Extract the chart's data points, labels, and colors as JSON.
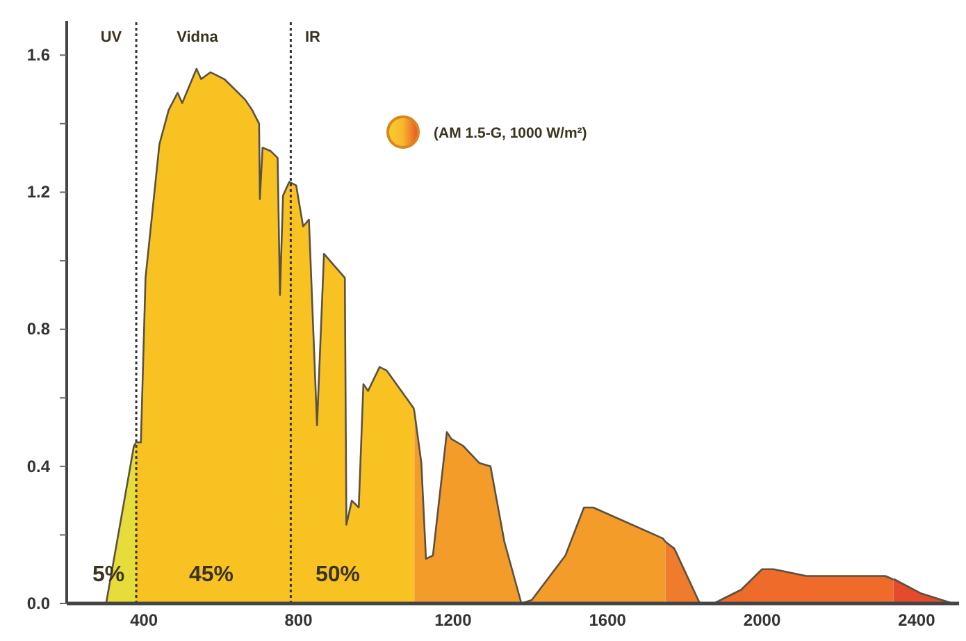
{
  "chart_data": {
    "type": "area",
    "xlim": [
      200,
      2510
    ],
    "ylim": [
      0,
      1.7
    ],
    "xticks": [
      400,
      800,
      1200,
      1600,
      2000,
      2400
    ],
    "yticks": [
      {
        "value": 0,
        "label": "0.0"
      },
      {
        "value": 0.2,
        "label": null
      },
      {
        "value": 0.4,
        "label": "0.4"
      },
      {
        "value": 0.6,
        "label": null
      },
      {
        "value": 0.8,
        "label": "0.8"
      },
      {
        "value": 1,
        "label": null
      },
      {
        "value": 1.2,
        "label": "1.2"
      },
      {
        "value": 1.4,
        "label": null
      },
      {
        "value": 1.6,
        "label": "1.6"
      }
    ],
    "series": [
      {
        "color": "#e6dc3a",
        "x": [
          302,
          374,
          380
        ],
        "values": [
          0,
          0.46,
          0.47
        ]
      },
      {
        "color": "#f8c322",
        "x": [
          380,
          392,
          404,
          440,
          464,
          487,
          499,
          536,
          548,
          572,
          608,
          662,
          680,
          698,
          700,
          707,
          728,
          746,
          752,
          760,
          776,
          794,
          812,
          827,
          848,
          866,
          920,
          924,
          938,
          956,
          968,
          980,
          1010,
          1028,
          1098,
          1100
        ],
        "values": [
          0.47,
          0.47,
          0.95,
          1.34,
          1.44,
          1.49,
          1.46,
          1.56,
          1.53,
          1.55,
          1.53,
          1.47,
          1.44,
          1.4,
          1.18,
          1.33,
          1.32,
          1.3,
          0.9,
          1.19,
          1.23,
          1.22,
          1.1,
          1.12,
          0.52,
          1.02,
          0.95,
          0.23,
          0.3,
          0.28,
          0.64,
          0.62,
          0.69,
          0.68,
          0.57,
          0.56
        ]
      },
      {
        "color": "#f39c2a",
        "x": [
          1100,
          1118,
          1130,
          1148,
          1184,
          1196,
          1226,
          1268,
          1297,
          1333,
          1377,
          1404,
          1491,
          1539,
          1563,
          1743,
          1750
        ],
        "values": [
          0.56,
          0.41,
          0.13,
          0.14,
          0.5,
          0.48,
          0.46,
          0.41,
          0.4,
          0.18,
          0,
          0.01,
          0.14,
          0.28,
          0.28,
          0.19,
          0.18
        ]
      },
      {
        "color": "#ee7c2c",
        "x": [
          1750,
          1773,
          1839
        ],
        "values": [
          0.18,
          0.16,
          0
        ]
      },
      {
        "color": "#ee6b2a",
        "x": [
          1875,
          1946,
          2000,
          2030,
          2115,
          2319,
          2340
        ],
        "values": [
          0,
          0.04,
          0.1,
          0.1,
          0.08,
          0.08,
          0.07
        ]
      },
      {
        "color": "#e64a2c",
        "x": [
          2340,
          2343,
          2410,
          2494
        ],
        "values": [
          0.07,
          0.07,
          0.03,
          0
        ]
      }
    ],
    "ref_lines": [
      {
        "axis": "x",
        "value": 380,
        "line_style": "dotted",
        "color": "#333333"
      },
      {
        "axis": "x",
        "value": 780,
        "line_style": "dotted",
        "color": "#333333"
      }
    ],
    "annotations": [
      "UV",
      "Vidna",
      "IR",
      "5%",
      "45%",
      "50%",
      "(AM 1.5-G, 1000 W/m²)"
    ]
  }
}
